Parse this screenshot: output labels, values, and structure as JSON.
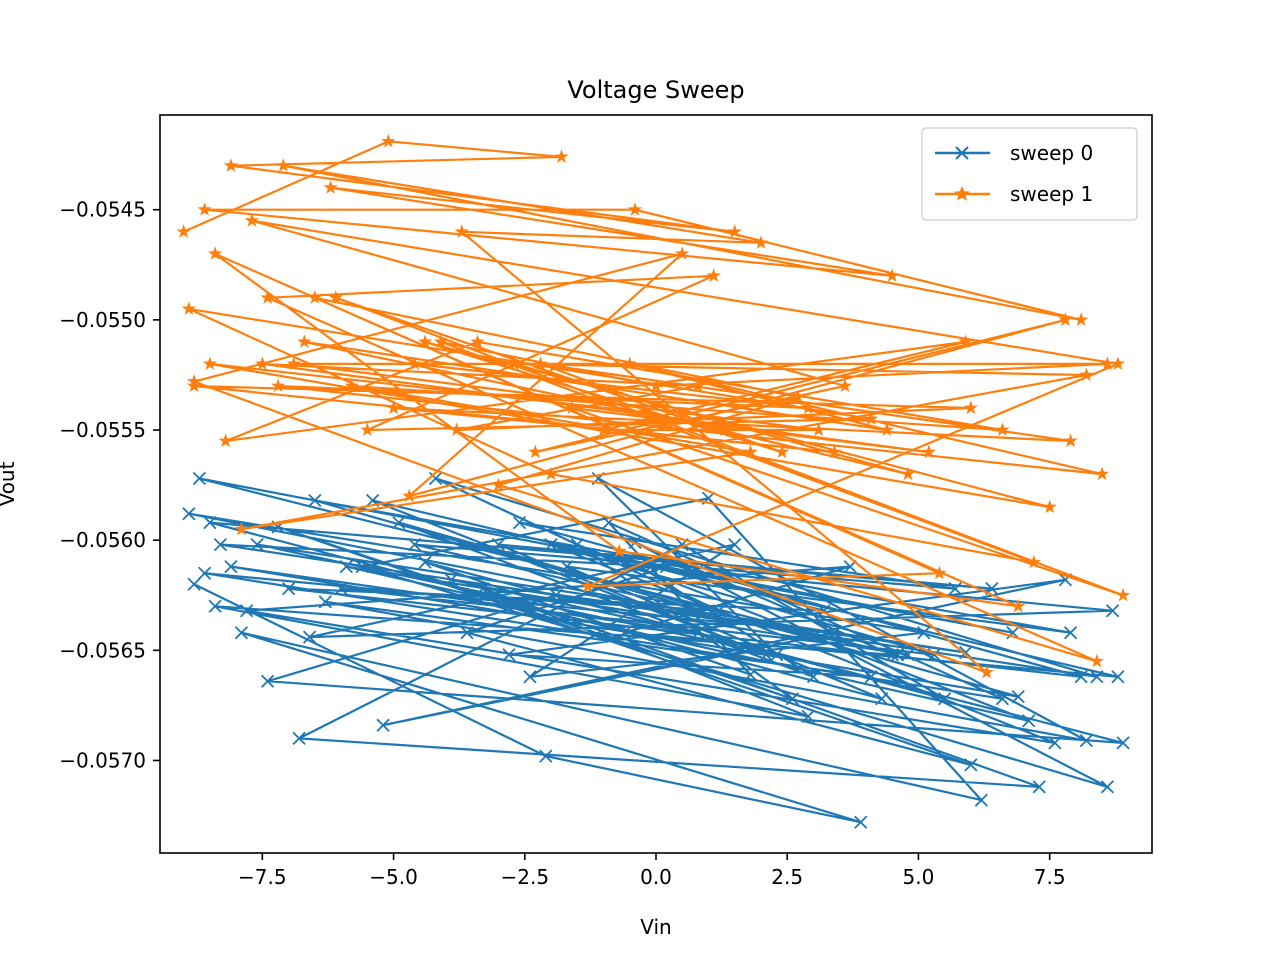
{
  "chart_data": {
    "type": "line",
    "title": "Voltage Sweep",
    "xlabel": "Vin",
    "ylabel": "Vout",
    "xlim": [
      -9.45,
      9.45
    ],
    "ylim": [
      -0.05742,
      -0.05407
    ],
    "xticks": [
      -7.5,
      -5.0,
      -2.5,
      0.0,
      2.5,
      5.0,
      7.5
    ],
    "xtick_labels": [
      "−7.5",
      "−5.0",
      "−2.5",
      "0.0",
      "2.5",
      "5.0",
      "7.5"
    ],
    "yticks": [
      -0.0545,
      -0.055,
      -0.0555,
      -0.056,
      -0.0565,
      -0.057
    ],
    "ytick_labels": [
      "−0.0545",
      "−0.0550",
      "−0.0555",
      "−0.0560",
      "−0.0565",
      "−0.0570"
    ],
    "grid": false,
    "legend_position": "top-right",
    "series": [
      {
        "name": "sweep 0",
        "color": "#1f77b4",
        "marker": "x",
        "x": [
          -8.8,
          -2.1,
          3.9,
          -7.9,
          6.2,
          1.0,
          -5.6,
          8.6,
          -0.4,
          4.5,
          -8.4,
          2.9,
          -3.3,
          7.3,
          -6.8,
          0.5,
          5.5,
          -1.9,
          -7.4,
          8.9,
          -4.4,
          1.8,
          -0.9,
          6.6,
          -8.6,
          3.4,
          -5.2,
          7.8,
          -2.8,
          4.1,
          -6.3,
          8.2,
          -1.1,
          2.3,
          -7.6,
          5.9,
          -3.9,
          0.8,
          -8.1,
          6.9,
          -4.9,
          3.0,
          -0.3,
          8.7,
          -6.6,
          1.5,
          -2.4,
          5.1,
          -8.9,
          4.8,
          -5.9,
          7.1,
          -1.5,
          2.6,
          -7.2,
          6.0,
          -3.6,
          0.2,
          -8.3,
          8.4,
          -4.2,
          1.2,
          -6.0,
          5.3,
          -2.0,
          7.6,
          -7.8,
          3.7,
          -0.6,
          8.8,
          -5.4,
          2.1,
          -3.0,
          6.4,
          -8.5,
          4.3,
          -1.7,
          7.9,
          -6.5,
          0.9,
          -4.6,
          5.7,
          -2.6,
          8.1,
          -7.0,
          3.2,
          -0.1,
          6.8,
          -8.7,
          4.6
        ],
        "y": [
          -0.0562,
          -0.05698,
          -0.05728,
          -0.05642,
          -0.05718,
          -0.05581,
          -0.05612,
          -0.05712,
          -0.05601,
          -0.05652,
          -0.0563,
          -0.0568,
          -0.05622,
          -0.05712,
          -0.0569,
          -0.05602,
          -0.05672,
          -0.05625,
          -0.05664,
          -0.05692,
          -0.0561,
          -0.05661,
          -0.05592,
          -0.05672,
          -0.05615,
          -0.05642,
          -0.05684,
          -0.05618,
          -0.05652,
          -0.05662,
          -0.05628,
          -0.05691,
          -0.05572,
          -0.05652,
          -0.05602,
          -0.05651,
          -0.05618,
          -0.05642,
          -0.05612,
          -0.05671,
          -0.05592,
          -0.05662,
          -0.05612,
          -0.05632,
          -0.05644,
          -0.05602,
          -0.05662,
          -0.05642,
          -0.05588,
          -0.05652,
          -0.05612,
          -0.05682,
          -0.05602,
          -0.05672,
          -0.05594,
          -0.05702,
          -0.05642,
          -0.05612,
          -0.05602,
          -0.05662,
          -0.05572,
          -0.05632,
          -0.05622,
          -0.05652,
          -0.05602,
          -0.05692,
          -0.05632,
          -0.05612,
          -0.05642,
          -0.05662,
          -0.05582,
          -0.05652,
          -0.05602,
          -0.05622,
          -0.05592,
          -0.05672,
          -0.05612,
          -0.05642,
          -0.05582,
          -0.05632,
          -0.05602,
          -0.05622,
          -0.05592,
          -0.05662,
          -0.05622,
          -0.05632,
          -0.05612,
          -0.05642,
          -0.05572,
          -0.05652
        ]
      },
      {
        "name": "sweep 1",
        "color": "#ff7f0e",
        "marker": "*",
        "x": [
          -9.0,
          -5.1,
          -1.8,
          -8.1,
          1.5,
          -6.2,
          4.5,
          -8.6,
          -0.4,
          8.1,
          -7.1,
          2.0,
          -3.7,
          6.3,
          -8.8,
          0.5,
          -4.7,
          7.8,
          -2.3,
          3.6,
          -7.7,
          8.8,
          -1.3,
          5.4,
          -8.4,
          -0.7,
          6.9,
          -6.5,
          2.7,
          -3.0,
          8.4,
          -7.4,
          1.1,
          -5.5,
          4.1,
          -8.9,
          -2.0,
          7.2,
          -4.1,
          0.0,
          8.6,
          -6.9,
          3.1,
          -1.0,
          5.9,
          -8.2,
          -3.4,
          6.6,
          -5.8,
          1.8,
          -7.9,
          8.2,
          -2.7,
          4.8,
          -0.2,
          -8.5,
          7.5,
          -4.4,
          2.4,
          -6.1,
          8.9,
          -1.6,
          5.2,
          -7.5,
          0.8,
          -3.8,
          6.0,
          -8.8,
          3.4,
          -5.0,
          7.9,
          -2.2,
          1.3,
          -6.7,
          4.4,
          -0.5,
          8.5,
          -7.2,
          2.9,
          -4.6
        ],
        "y": [
          -0.0546,
          -0.05419,
          -0.05426,
          -0.0543,
          -0.0546,
          -0.0544,
          -0.0548,
          -0.0545,
          -0.0545,
          -0.055,
          -0.0543,
          -0.05465,
          -0.0546,
          -0.0566,
          -0.05528,
          -0.0547,
          -0.0558,
          -0.055,
          -0.0556,
          -0.0553,
          -0.05455,
          -0.0552,
          -0.05621,
          -0.05615,
          -0.0547,
          -0.05605,
          -0.0563,
          -0.0549,
          -0.05535,
          -0.05575,
          -0.05655,
          -0.0549,
          -0.0548,
          -0.0555,
          -0.05545,
          -0.05495,
          -0.0557,
          -0.0561,
          -0.0551,
          -0.0553,
          -0.0552,
          -0.0552,
          -0.0555,
          -0.0555,
          -0.0551,
          -0.05555,
          -0.0551,
          -0.0555,
          -0.0553,
          -0.0556,
          -0.05595,
          -0.05525,
          -0.0552,
          -0.0557,
          -0.05542,
          -0.0552,
          -0.05585,
          -0.0551,
          -0.0556,
          -0.0549,
          -0.05625,
          -0.0554,
          -0.0556,
          -0.0552,
          -0.0553,
          -0.0555,
          -0.0554,
          -0.0553,
          -0.0556,
          -0.0554,
          -0.05555,
          -0.0552,
          -0.0555,
          -0.0551,
          -0.0555,
          -0.0552,
          -0.0557,
          -0.0553,
          -0.0554,
          -0.0552
        ]
      }
    ]
  }
}
